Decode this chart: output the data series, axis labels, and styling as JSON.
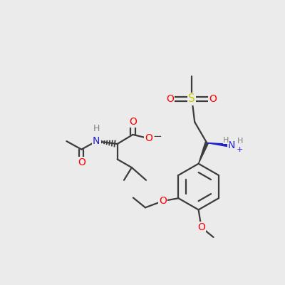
{
  "background_color": "#ebebeb",
  "fig_size": [
    4.0,
    4.0
  ],
  "dpi": 100,
  "colors": {
    "bond": "#3c3c3c",
    "N": "#2020cc",
    "O": "#ff0000",
    "S": "#cccc00",
    "H": "#808080",
    "C": "#3c3c3c"
  }
}
